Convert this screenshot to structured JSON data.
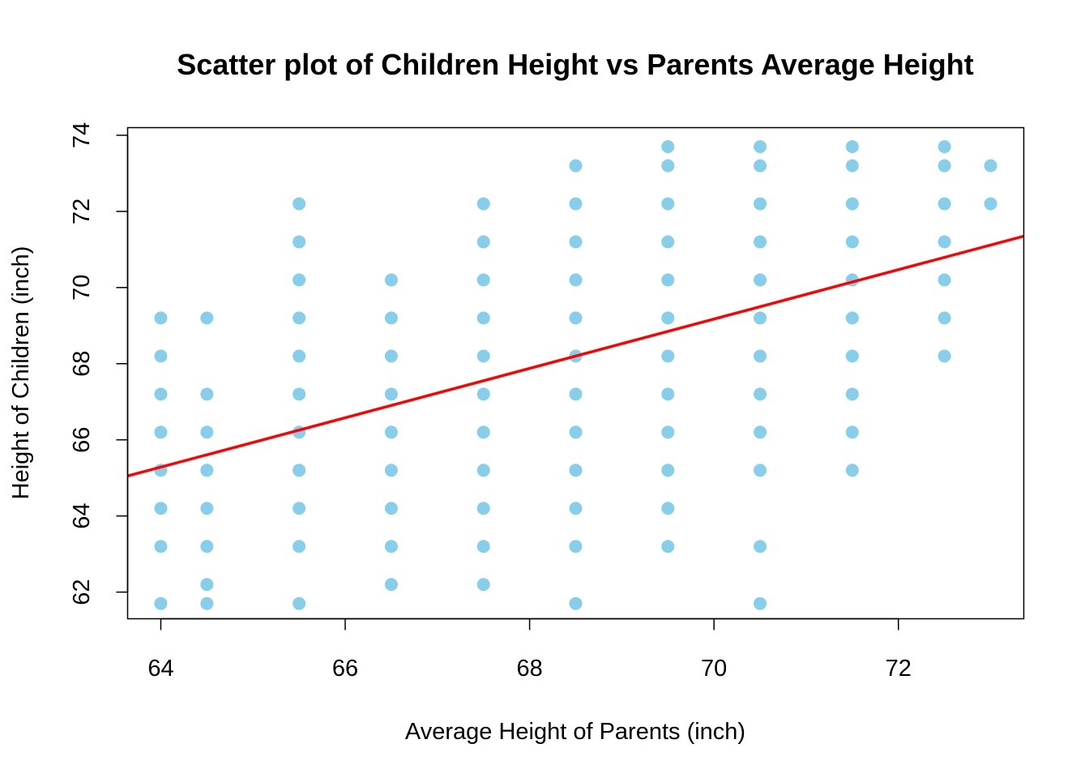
{
  "chart_data": {
    "type": "scatter",
    "title": "Scatter plot of Children Height vs Parents Average Height",
    "xlabel": "Average Height of Parents (inch)",
    "ylabel": "Height of Children (inch)",
    "xlim": [
      63.64,
      73.36
    ],
    "ylim": [
      61.3,
      74.2
    ],
    "xticks": [
      "64",
      "66",
      "68",
      "70",
      "72"
    ],
    "yticks": [
      "62",
      "64",
      "66",
      "68",
      "70",
      "72",
      "74"
    ],
    "grid": false,
    "point_color": "#87CEEB",
    "line_color": "#FF0000",
    "points": [
      [
        64.0,
        61.7
      ],
      [
        64.0,
        63.2
      ],
      [
        64.0,
        64.2
      ],
      [
        64.0,
        65.2
      ],
      [
        64.0,
        66.2
      ],
      [
        64.0,
        67.2
      ],
      [
        64.0,
        68.2
      ],
      [
        64.0,
        69.2
      ],
      [
        64.5,
        61.7
      ],
      [
        64.5,
        62.2
      ],
      [
        64.5,
        63.2
      ],
      [
        64.5,
        64.2
      ],
      [
        64.5,
        65.2
      ],
      [
        64.5,
        66.2
      ],
      [
        64.5,
        67.2
      ],
      [
        64.5,
        69.2
      ],
      [
        65.5,
        61.7
      ],
      [
        65.5,
        63.2
      ],
      [
        65.5,
        64.2
      ],
      [
        65.5,
        65.2
      ],
      [
        65.5,
        66.2
      ],
      [
        65.5,
        67.2
      ],
      [
        65.5,
        68.2
      ],
      [
        65.5,
        69.2
      ],
      [
        65.5,
        70.2
      ],
      [
        65.5,
        71.2
      ],
      [
        65.5,
        72.2
      ],
      [
        66.5,
        62.2
      ],
      [
        66.5,
        63.2
      ],
      [
        66.5,
        64.2
      ],
      [
        66.5,
        65.2
      ],
      [
        66.5,
        66.2
      ],
      [
        66.5,
        67.2
      ],
      [
        66.5,
        68.2
      ],
      [
        66.5,
        69.2
      ],
      [
        66.5,
        70.2
      ],
      [
        67.5,
        62.2
      ],
      [
        67.5,
        63.2
      ],
      [
        67.5,
        64.2
      ],
      [
        67.5,
        65.2
      ],
      [
        67.5,
        66.2
      ],
      [
        67.5,
        67.2
      ],
      [
        67.5,
        68.2
      ],
      [
        67.5,
        69.2
      ],
      [
        67.5,
        70.2
      ],
      [
        67.5,
        71.2
      ],
      [
        67.5,
        72.2
      ],
      [
        68.5,
        61.7
      ],
      [
        68.5,
        63.2
      ],
      [
        68.5,
        64.2
      ],
      [
        68.5,
        65.2
      ],
      [
        68.5,
        66.2
      ],
      [
        68.5,
        67.2
      ],
      [
        68.5,
        68.2
      ],
      [
        68.5,
        69.2
      ],
      [
        68.5,
        70.2
      ],
      [
        68.5,
        71.2
      ],
      [
        68.5,
        72.2
      ],
      [
        68.5,
        73.2
      ],
      [
        69.5,
        63.2
      ],
      [
        69.5,
        64.2
      ],
      [
        69.5,
        65.2
      ],
      [
        69.5,
        66.2
      ],
      [
        69.5,
        67.2
      ],
      [
        69.5,
        68.2
      ],
      [
        69.5,
        69.2
      ],
      [
        69.5,
        70.2
      ],
      [
        69.5,
        71.2
      ],
      [
        69.5,
        72.2
      ],
      [
        69.5,
        73.2
      ],
      [
        69.5,
        73.7
      ],
      [
        70.5,
        61.7
      ],
      [
        70.5,
        63.2
      ],
      [
        70.5,
        65.2
      ],
      [
        70.5,
        66.2
      ],
      [
        70.5,
        67.2
      ],
      [
        70.5,
        68.2
      ],
      [
        70.5,
        69.2
      ],
      [
        70.5,
        70.2
      ],
      [
        70.5,
        71.2
      ],
      [
        70.5,
        72.2
      ],
      [
        70.5,
        73.2
      ],
      [
        70.5,
        73.7
      ],
      [
        71.5,
        65.2
      ],
      [
        71.5,
        66.2
      ],
      [
        71.5,
        67.2
      ],
      [
        71.5,
        68.2
      ],
      [
        71.5,
        69.2
      ],
      [
        71.5,
        70.2
      ],
      [
        71.5,
        71.2
      ],
      [
        71.5,
        72.2
      ],
      [
        71.5,
        73.2
      ],
      [
        71.5,
        73.7
      ],
      [
        72.5,
        68.2
      ],
      [
        72.5,
        69.2
      ],
      [
        72.5,
        70.2
      ],
      [
        72.5,
        71.2
      ],
      [
        72.5,
        72.2
      ],
      [
        72.5,
        73.2
      ],
      [
        72.5,
        73.7
      ],
      [
        73.0,
        72.2
      ],
      [
        73.0,
        73.2
      ]
    ],
    "regression_line": {
      "x": [
        63.64,
        73.36
      ],
      "y": [
        65.05,
        71.35
      ]
    }
  }
}
